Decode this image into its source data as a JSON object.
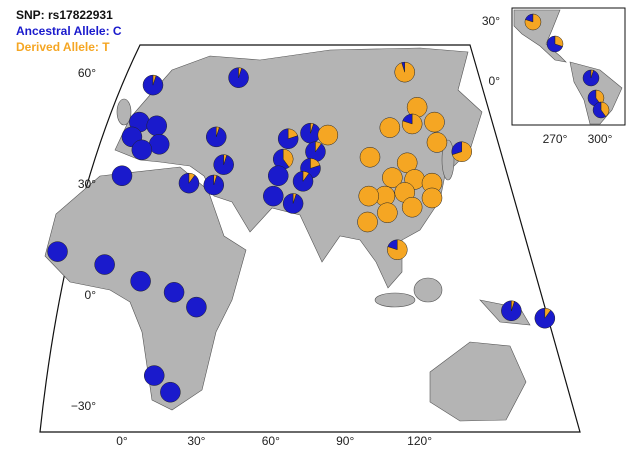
{
  "legend": {
    "title": "SNP: rs17822931",
    "ancestral": "Ancestral Allele: C",
    "derived": "Derived Allele: T",
    "ancestral_color": "#1a1acc",
    "derived_color": "#f5a623"
  },
  "main_map": {
    "xticks": [
      {
        "value": 0,
        "label": "0°"
      },
      {
        "value": 30,
        "label": "30°"
      },
      {
        "value": 60,
        "label": "60°"
      },
      {
        "value": 90,
        "label": "90°"
      },
      {
        "value": 120,
        "label": "120°"
      }
    ],
    "yticks": [
      {
        "value": 60,
        "label": "60°"
      },
      {
        "value": 30,
        "label": "30°"
      },
      {
        "value": 0,
        "label": "0°"
      },
      {
        "value": -30,
        "label": "−30°"
      }
    ],
    "populations": [
      {
        "lon": 12.5,
        "lat": 57,
        "values": [
          95,
          5
        ]
      },
      {
        "lon": 47,
        "lat": 59,
        "values": [
          95,
          5
        ]
      },
      {
        "lon": 7,
        "lat": 47,
        "values": [
          100,
          0
        ]
      },
      {
        "lon": 14,
        "lat": 46,
        "values": [
          100,
          0
        ]
      },
      {
        "lon": 4,
        "lat": 43,
        "values": [
          100,
          0
        ]
      },
      {
        "lon": 15,
        "lat": 41,
        "values": [
          100,
          0
        ]
      },
      {
        "lon": 8,
        "lat": 39.5,
        "values": [
          100,
          0
        ]
      },
      {
        "lon": 0,
        "lat": 32.5,
        "values": [
          100,
          0
        ]
      },
      {
        "lon": 38,
        "lat": 43,
        "values": [
          95,
          5
        ]
      },
      {
        "lon": 41,
        "lat": 35.5,
        "values": [
          95,
          5
        ]
      },
      {
        "lon": 27,
        "lat": 30.5,
        "values": [
          90,
          10
        ]
      },
      {
        "lon": 37,
        "lat": 30,
        "values": [
          95,
          5
        ]
      },
      {
        "lon": 67,
        "lat": 42.5,
        "values": [
          80,
          20
        ]
      },
      {
        "lon": 76,
        "lat": 44,
        "values": [
          95,
          5
        ]
      },
      {
        "lon": 83,
        "lat": 43.5,
        "values": [
          0,
          100
        ]
      },
      {
        "lon": 65,
        "lat": 37,
        "values": [
          60,
          40
        ]
      },
      {
        "lon": 78,
        "lat": 39,
        "values": [
          90,
          10
        ]
      },
      {
        "lon": 76,
        "lat": 34.5,
        "values": [
          80,
          20
        ]
      },
      {
        "lon": 63,
        "lat": 32.5,
        "values": [
          100,
          0
        ]
      },
      {
        "lon": 73,
        "lat": 31,
        "values": [
          90,
          10
        ]
      },
      {
        "lon": 61,
        "lat": 27,
        "values": [
          100,
          0
        ]
      },
      {
        "lon": 69,
        "lat": 25,
        "values": [
          95,
          5
        ]
      },
      {
        "lon": 114,
        "lat": 60.5,
        "values": [
          5,
          95
        ]
      },
      {
        "lon": 119,
        "lat": 51,
        "values": [
          0,
          100
        ]
      },
      {
        "lon": 108,
        "lat": 45.5,
        "values": [
          0,
          100
        ]
      },
      {
        "lon": 117,
        "lat": 46.5,
        "values": [
          20,
          80
        ]
      },
      {
        "lon": 126,
        "lat": 47,
        "values": [
          0,
          100
        ]
      },
      {
        "lon": 127,
        "lat": 41.5,
        "values": [
          0,
          100
        ]
      },
      {
        "lon": 137,
        "lat": 39,
        "values": [
          30,
          70
        ]
      },
      {
        "lon": 100,
        "lat": 37.5,
        "values": [
          0,
          100
        ]
      },
      {
        "lon": 115,
        "lat": 36,
        "values": [
          0,
          100
        ]
      },
      {
        "lon": 109,
        "lat": 32,
        "values": [
          0,
          100
        ]
      },
      {
        "lon": 118,
        "lat": 31.5,
        "values": [
          0,
          100
        ]
      },
      {
        "lon": 125,
        "lat": 30.5,
        "values": [
          0,
          100
        ]
      },
      {
        "lon": 106,
        "lat": 27,
        "values": [
          0,
          100
        ]
      },
      {
        "lon": 114,
        "lat": 28,
        "values": [
          0,
          100
        ]
      },
      {
        "lon": 99.5,
        "lat": 27,
        "values": [
          0,
          100
        ]
      },
      {
        "lon": 125,
        "lat": 26.5,
        "values": [
          0,
          100
        ]
      },
      {
        "lon": 107,
        "lat": 22.5,
        "values": [
          0,
          100
        ]
      },
      {
        "lon": 99,
        "lat": 20,
        "values": [
          0,
          100
        ]
      },
      {
        "lon": 117,
        "lat": 24,
        "values": [
          0,
          100
        ]
      },
      {
        "lon": 111,
        "lat": 12.5,
        "values": [
          20,
          80
        ]
      },
      {
        "lon": -26,
        "lat": 12,
        "values": [
          100,
          0
        ]
      },
      {
        "lon": -7,
        "lat": 8.5,
        "values": [
          100,
          0
        ]
      },
      {
        "lon": 7.5,
        "lat": 4,
        "values": [
          100,
          0
        ]
      },
      {
        "lon": 21,
        "lat": 1,
        "values": [
          100,
          0
        ]
      },
      {
        "lon": 30,
        "lat": -3,
        "values": [
          100,
          0
        ]
      },
      {
        "lon": 13,
        "lat": -21.5,
        "values": [
          100,
          0
        ]
      },
      {
        "lon": 19.5,
        "lat": -26,
        "values": [
          100,
          0
        ]
      },
      {
        "lon": 157,
        "lat": -4,
        "values": [
          95,
          5
        ]
      },
      {
        "lon": 170.5,
        "lat": -6,
        "values": [
          90,
          10
        ]
      }
    ]
  },
  "inset_map": {
    "xticks": [
      {
        "value": 270,
        "label": "270°"
      },
      {
        "value": 300,
        "label": "300°"
      }
    ],
    "yticks": [
      {
        "value": 30,
        "label": "30°"
      },
      {
        "value": 0,
        "label": "0°"
      }
    ],
    "populations": [
      {
        "lon": 255.3,
        "lat": 30,
        "values": [
          20,
          80
        ]
      },
      {
        "lon": 270,
        "lat": 19,
        "values": [
          70,
          30
        ]
      },
      {
        "lon": 294,
        "lat": 2,
        "values": [
          95,
          5
        ]
      },
      {
        "lon": 297.3,
        "lat": -8,
        "values": [
          60,
          40
        ]
      },
      {
        "lon": 300.7,
        "lat": -14,
        "values": [
          60,
          40
        ]
      }
    ]
  }
}
